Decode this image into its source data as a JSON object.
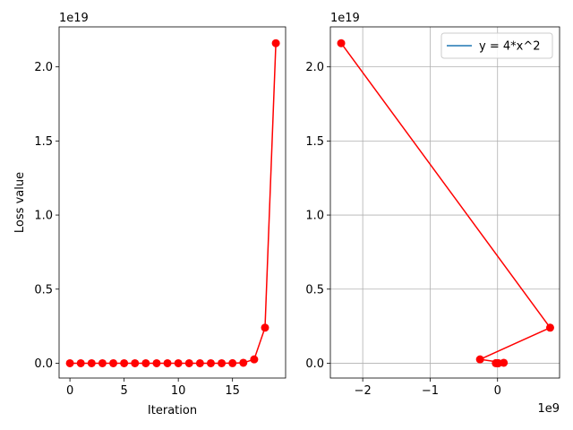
{
  "chart_data": [
    {
      "type": "line",
      "xlabel": "Iteration",
      "ylabel": "Loss value",
      "y_offset_label": "1e19",
      "x_offset_label": "",
      "grid": false,
      "xlim": [
        -1,
        19.9
      ],
      "ylim": [
        -0.1,
        2.27
      ],
      "xticks": [
        0,
        5,
        10,
        15
      ],
      "xtick_labels": [
        "0",
        "5",
        "10",
        "15"
      ],
      "yticks": [
        0,
        0.5,
        1.0,
        1.5,
        2.0
      ],
      "ytick_labels": [
        "0.0",
        "0.5",
        "1.0",
        "1.5",
        "2.0"
      ],
      "series": [
        {
          "color": "#ff0000",
          "marker": "circle",
          "x": [
            0,
            1,
            2,
            3,
            4,
            5,
            6,
            7,
            8,
            9,
            10,
            11,
            12,
            13,
            14,
            15,
            16,
            17,
            18,
            19
          ],
          "y": [
            0,
            0,
            0,
            0,
            0,
            0,
            0,
            0,
            0,
            0,
            0,
            0,
            0,
            0,
            0,
            0.0003,
            0.003,
            0.026,
            0.24,
            2.16
          ]
        }
      ]
    },
    {
      "type": "line",
      "xlabel": "",
      "ylabel": "",
      "y_offset_label": "1e19",
      "x_offset_label": "1e9",
      "grid": true,
      "legend_position": "upper-right",
      "xlim": [
        -2.48,
        0.92
      ],
      "ylim": [
        -0.1,
        2.27
      ],
      "xticks": [
        -2,
        -1,
        0
      ],
      "xtick_labels": [
        "−2",
        "−1",
        "0"
      ],
      "yticks": [
        0,
        0.5,
        1.0,
        1.5,
        2.0
      ],
      "ytick_labels": [
        "0.0",
        "0.5",
        "1.0",
        "1.5",
        "2.0"
      ],
      "legend_entries": [
        {
          "label": "y = 4*x^2",
          "color": "#1f77b4"
        }
      ],
      "series": [
        {
          "color": "#ff0000",
          "marker": "circle",
          "x": [
            0.001,
            -0.0002,
            0.0004,
            -0.001,
            0.003,
            -0.006,
            0.012,
            -0.026,
            0.092,
            -0.26,
            0.78,
            -2.32
          ],
          "y": [
            0,
            0,
            0,
            0,
            0,
            0,
            0,
            0.0003,
            0.003,
            0.026,
            0.24,
            2.16
          ]
        }
      ]
    }
  ]
}
